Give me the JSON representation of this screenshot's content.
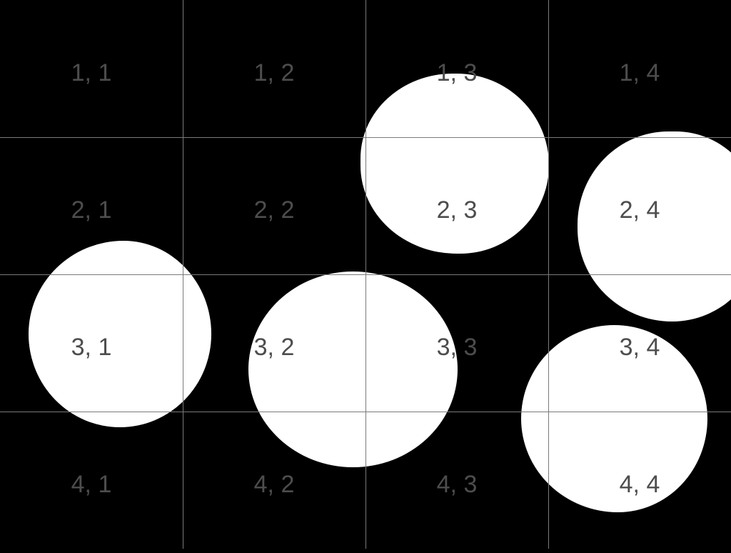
{
  "grid": {
    "rows": 4,
    "cols": 4,
    "labels": [
      [
        "1, 1",
        "1, 2",
        "1, 3",
        "1, 4"
      ],
      [
        "2, 1",
        "2, 2",
        "2, 3",
        "2, 4"
      ],
      [
        "3, 1",
        "3, 2",
        "3, 3",
        "3, 4"
      ],
      [
        "4, 1",
        "4, 2",
        "4, 3",
        "4, 4"
      ]
    ]
  },
  "colors": {
    "background": "#000000",
    "blob": "#ffffff",
    "grid_line": "#7a7a7a",
    "label": "#4d4d4d"
  }
}
